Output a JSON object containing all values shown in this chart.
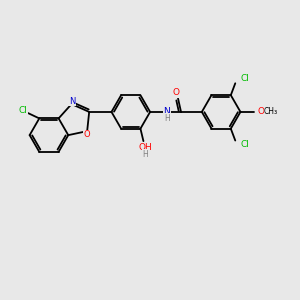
{
  "background_color": "#e8e8e8",
  "bond_color": "#000000",
  "atom_colors": {
    "C": "#000000",
    "N": "#0000cc",
    "O": "#ff0000",
    "Cl": "#00bb00",
    "H": "#808080"
  },
  "figsize": [
    3.0,
    3.0
  ],
  "dpi": 100
}
